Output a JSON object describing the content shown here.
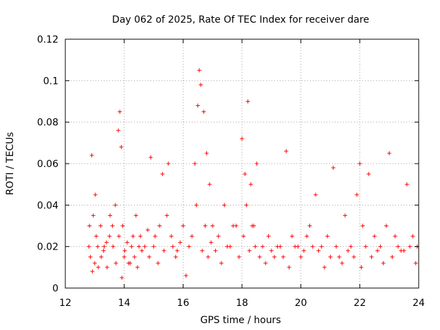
{
  "chart_data": {
    "type": "scatter",
    "title": "Day 062 of 2025, Rate Of TEC Index for receiver dare",
    "xlabel": "GPS time / hours",
    "ylabel": "ROTI / TECUs",
    "xlim": [
      12,
      24
    ],
    "ylim": [
      0,
      0.12
    ],
    "xticks": [
      "12",
      "14",
      "16",
      "18",
      "20",
      "22",
      "24"
    ],
    "yticks": [
      "0",
      "0.02",
      "0.04",
      "0.06",
      "0.08",
      "0.1",
      "0.12"
    ],
    "xtick_values": [
      12,
      14,
      16,
      18,
      20,
      22,
      24
    ],
    "ytick_values": [
      0,
      0.02,
      0.04,
      0.06,
      0.08,
      0.1,
      0.12
    ],
    "grid": true,
    "marker": "plus",
    "color": "#ff0000",
    "series": [
      {
        "name": "ROTI",
        "x": [
          12.8,
          12.85,
          12.9,
          12.95,
          13.0,
          13.05,
          13.1,
          13.2,
          13.3,
          13.4,
          13.5,
          13.6,
          13.7,
          13.8,
          13.85,
          13.9,
          13.95,
          14.0,
          14.1,
          14.2,
          14.3,
          14.4,
          14.5,
          14.6,
          14.8,
          14.9,
          15.0,
          15.2,
          15.3,
          15.5,
          15.6,
          15.8,
          16.0,
          16.2,
          16.4,
          16.5,
          16.55,
          16.6,
          16.7,
          16.8,
          16.9,
          17.0,
          17.2,
          17.4,
          17.6,
          17.8,
          18.0,
          18.1,
          18.2,
          18.3,
          18.4,
          18.5,
          18.7,
          18.9,
          19.1,
          19.3,
          19.5,
          19.7,
          19.9,
          20.1,
          20.3,
          20.5,
          20.7,
          20.9,
          21.1,
          21.3,
          21.5,
          21.7,
          21.9,
          22.0,
          22.1,
          22.3,
          22.5,
          22.7,
          22.9,
          23.0,
          23.2,
          23.4,
          23.6,
          23.8,
          23.95,
          12.82,
          12.92,
          13.02,
          13.12,
          13.22,
          13.32,
          13.42,
          13.52,
          13.62,
          13.72,
          13.82,
          13.92,
          14.02,
          14.15,
          14.25,
          14.35,
          14.45,
          14.55,
          14.7,
          14.85,
          15.05,
          15.15,
          15.35,
          15.45,
          15.65,
          15.75,
          15.9,
          16.1,
          16.3,
          16.45,
          16.65,
          16.75,
          16.85,
          16.95,
          17.1,
          17.3,
          17.5,
          17.7,
          17.9,
          18.05,
          18.15,
          18.25,
          18.35,
          18.45,
          18.6,
          18.8,
          19.0,
          19.2,
          19.4,
          19.6,
          19.8,
          20.0,
          20.2,
          20.4,
          20.6,
          20.8,
          21.0,
          21.2,
          21.4,
          21.6,
          21.8,
          22.05,
          22.2,
          22.4,
          22.6,
          22.8,
          23.1,
          23.3,
          23.5,
          23.7,
          23.9
        ],
        "y": [
          0.02,
          0.015,
          0.064,
          0.035,
          0.012,
          0.025,
          0.02,
          0.03,
          0.018,
          0.022,
          0.025,
          0.03,
          0.04,
          0.076,
          0.085,
          0.068,
          0.03,
          0.015,
          0.022,
          0.012,
          0.025,
          0.035,
          0.02,
          0.018,
          0.028,
          0.063,
          0.02,
          0.03,
          0.055,
          0.06,
          0.025,
          0.018,
          0.03,
          0.02,
          0.06,
          0.088,
          0.105,
          0.098,
          0.085,
          0.065,
          0.05,
          0.03,
          0.025,
          0.04,
          0.02,
          0.03,
          0.072,
          0.055,
          0.09,
          0.05,
          0.03,
          0.06,
          0.02,
          0.025,
          0.015,
          0.02,
          0.066,
          0.025,
          0.02,
          0.018,
          0.03,
          0.045,
          0.02,
          0.025,
          0.058,
          0.015,
          0.035,
          0.02,
          0.045,
          0.06,
          0.03,
          0.055,
          0.025,
          0.02,
          0.03,
          0.065,
          0.025,
          0.018,
          0.05,
          0.025,
          0.02,
          0.03,
          0.008,
          0.045,
          0.01,
          0.015,
          0.02,
          0.01,
          0.035,
          0.02,
          0.012,
          0.025,
          0.005,
          0.018,
          0.012,
          0.02,
          0.015,
          0.01,
          0.025,
          0.02,
          0.015,
          0.025,
          0.012,
          0.018,
          0.035,
          0.02,
          0.015,
          0.022,
          0.006,
          0.025,
          0.04,
          0.018,
          0.03,
          0.015,
          0.022,
          0.018,
          0.012,
          0.02,
          0.03,
          0.015,
          0.025,
          0.04,
          0.018,
          0.03,
          0.02,
          0.015,
          0.012,
          0.018,
          0.02,
          0.015,
          0.01,
          0.02,
          0.015,
          0.025,
          0.02,
          0.018,
          0.01,
          0.015,
          0.02,
          0.012,
          0.018,
          0.015,
          0.01,
          0.02,
          0.015,
          0.018,
          0.012,
          0.015,
          0.02,
          0.018,
          0.02,
          0.012
        ]
      }
    ]
  }
}
